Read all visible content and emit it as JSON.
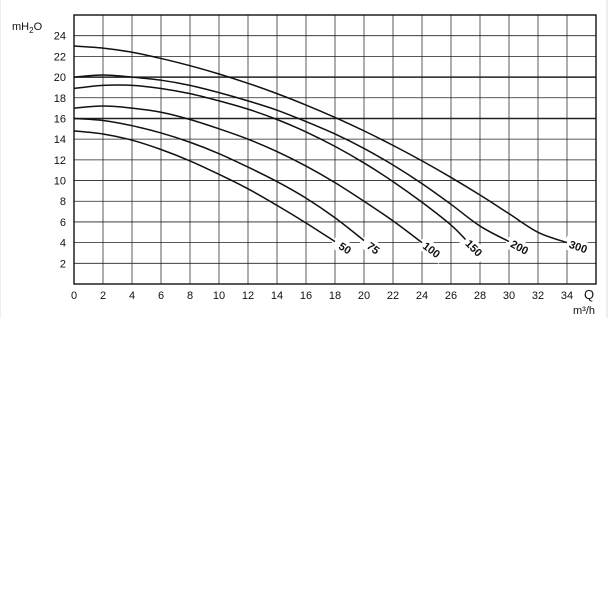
{
  "chart_data": {
    "type": "line",
    "ylabel_parts": {
      "base": "mH",
      "sub": "2",
      "tail": "O"
    },
    "xlabel_symbol": "Q",
    "xlabel_unit": "m³/h",
    "xlim": [
      0,
      36
    ],
    "ylim": [
      0,
      26
    ],
    "xticks": [
      0,
      2,
      4,
      6,
      8,
      10,
      12,
      14,
      16,
      18,
      20,
      22,
      24,
      26,
      28,
      30,
      32,
      34
    ],
    "yticks": [
      2,
      4,
      6,
      8,
      10,
      12,
      14,
      16,
      18,
      20,
      22,
      24
    ],
    "grid": true,
    "series": [
      {
        "name": "50",
        "x": [
          0,
          2,
          4,
          6,
          8,
          10,
          12,
          14,
          16,
          18
        ],
        "y": [
          14.8,
          14.5,
          13.9,
          13.0,
          11.9,
          10.6,
          9.2,
          7.6,
          5.9,
          4.1
        ]
      },
      {
        "name": "75",
        "x": [
          0,
          2,
          4,
          6,
          8,
          10,
          12,
          14,
          16,
          18,
          20
        ],
        "y": [
          16.0,
          15.8,
          15.3,
          14.6,
          13.7,
          12.6,
          11.3,
          9.9,
          8.3,
          6.4,
          4.2
        ]
      },
      {
        "name": "100",
        "x": [
          0,
          2,
          4,
          6,
          8,
          10,
          12,
          14,
          16,
          18,
          20,
          22,
          24
        ],
        "y": [
          17.0,
          17.2,
          17.0,
          16.6,
          15.9,
          15.0,
          14.0,
          12.8,
          11.4,
          9.8,
          8.0,
          6.1,
          4.0
        ]
      },
      {
        "name": "150",
        "x": [
          0,
          2,
          4,
          6,
          8,
          10,
          12,
          14,
          16,
          18,
          20,
          22,
          24,
          26,
          27
        ],
        "y": [
          18.9,
          19.2,
          19.2,
          18.9,
          18.4,
          17.7,
          16.9,
          15.9,
          14.7,
          13.3,
          11.7,
          9.9,
          7.9,
          5.7,
          4.3
        ]
      },
      {
        "name": "200",
        "x": [
          0,
          2,
          4,
          6,
          8,
          10,
          12,
          14,
          16,
          18,
          20,
          22,
          24,
          26,
          28,
          30
        ],
        "y": [
          20.0,
          20.2,
          20.0,
          19.7,
          19.2,
          18.5,
          17.7,
          16.8,
          15.7,
          14.5,
          13.1,
          11.5,
          9.7,
          7.7,
          5.6,
          4.1
        ]
      },
      {
        "name": "300",
        "x": [
          0,
          2,
          4,
          6,
          8,
          10,
          12,
          14,
          16,
          18,
          20,
          22,
          24,
          26,
          28,
          30,
          32,
          34
        ],
        "y": [
          23.0,
          22.8,
          22.4,
          21.8,
          21.1,
          20.3,
          19.4,
          18.4,
          17.3,
          16.1,
          14.8,
          13.4,
          11.9,
          10.3,
          8.6,
          6.8,
          5.0,
          4.0
        ]
      }
    ]
  }
}
